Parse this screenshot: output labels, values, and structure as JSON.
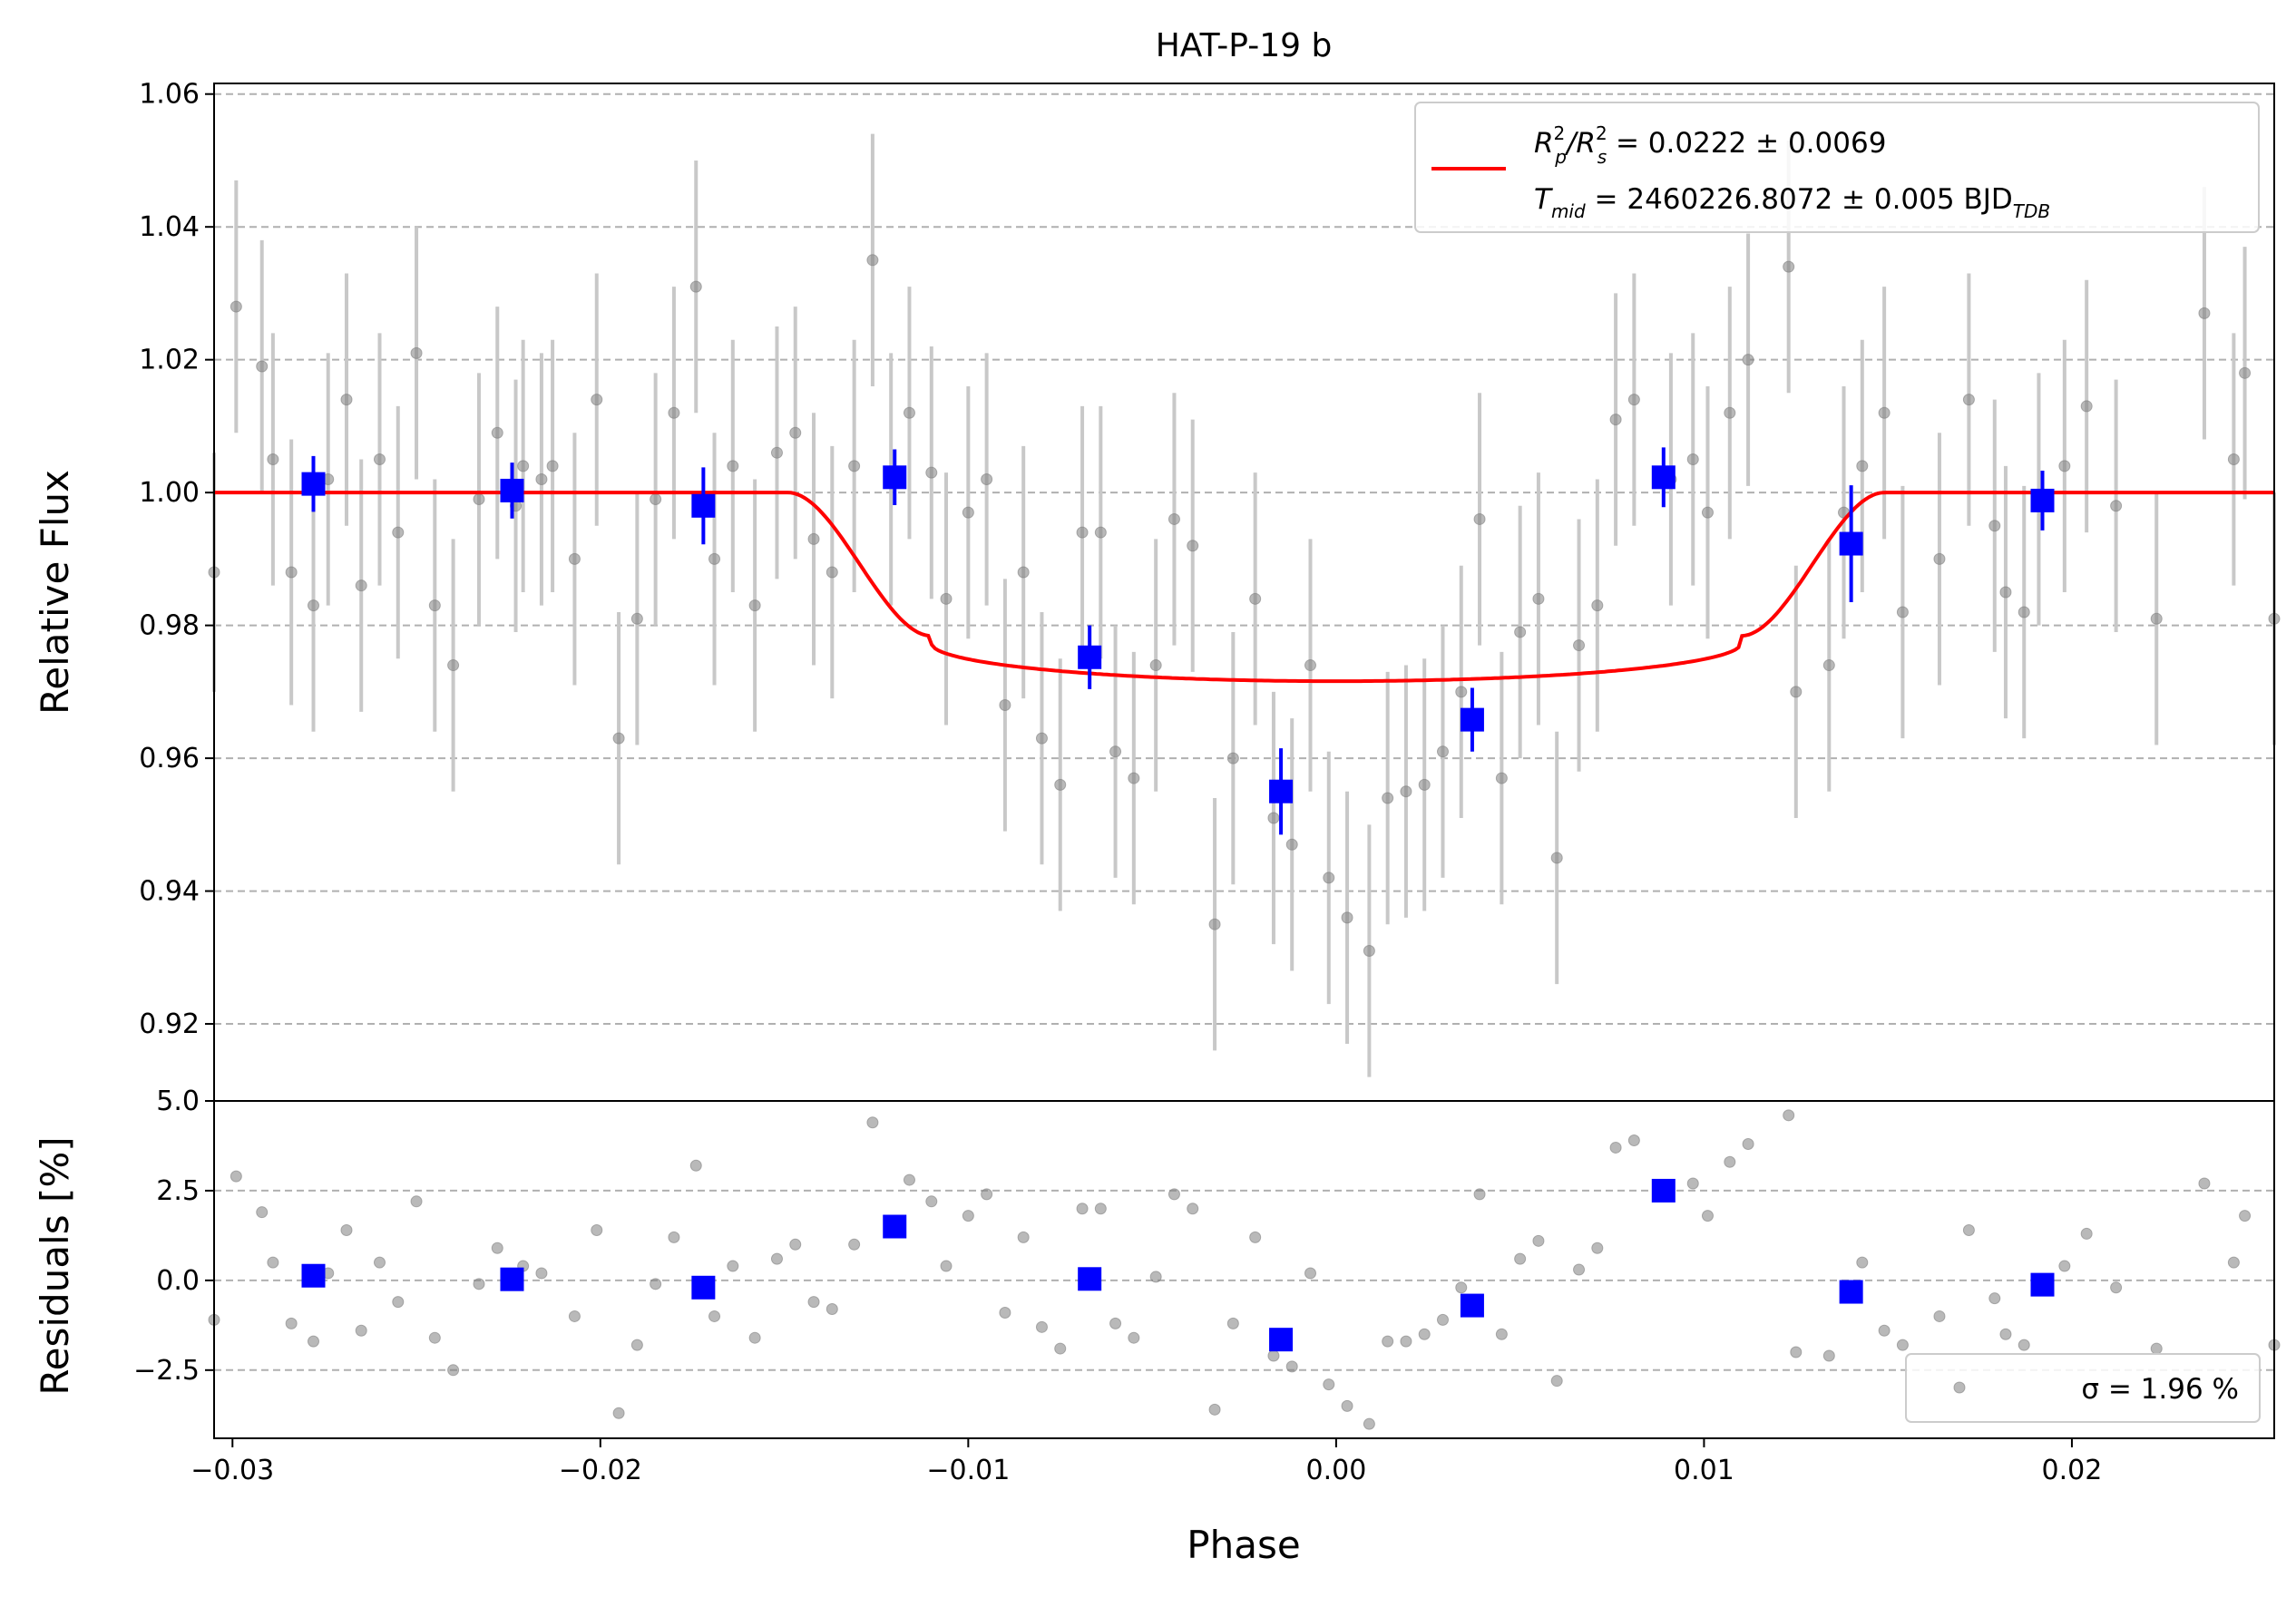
{
  "chart_data": [
    {
      "type": "scatter",
      "title": "HAT-P-19 b",
      "xlabel": "Phase",
      "ylabel": "Relative Flux",
      "xlim": [
        -0.0305,
        0.0255
      ],
      "ylim": [
        0.9084,
        1.0616
      ],
      "xticks": [
        "−0.03",
        "−0.02",
        "−0.01",
        "0.00",
        "0.01",
        "0.02"
      ],
      "xtick_values": [
        -0.03,
        -0.02,
        -0.01,
        0.0,
        0.01,
        0.02
      ],
      "yticks": [
        "0.92",
        "0.94",
        "0.96",
        "0.98",
        "1.00",
        "1.02",
        "1.04",
        "1.06"
      ],
      "ytick_values": [
        0.92,
        0.94,
        0.96,
        0.98,
        1.0,
        1.02,
        1.04,
        1.06
      ],
      "grid": "horizontal dashed",
      "legend_position": "top-right",
      "legend": [
        {
          "main": "R",
          "sup1": "2",
          "sub1": "p",
          "slash": "/R",
          "sup2": "2",
          "sub2": "s",
          "rest": " = 0.0222 ± 0.0069"
        },
        {
          "main": "T",
          "sub1": "mid",
          "rest": " = 2460226.8072 ± 0.005 BJD",
          "sub2": "TDB"
        }
      ],
      "colors": {
        "model": "#ff0000",
        "binned": "#0000ff",
        "raw": "#808080",
        "errorbar": "#c8c8c8",
        "grid": "#b0b0b0"
      },
      "raw_points": [
        [
          -0.0305,
          0.988,
          0.018
        ],
        [
          -0.0299,
          1.028,
          0.019
        ],
        [
          -0.0292,
          1.019,
          0.019
        ],
        [
          -0.0289,
          1.005,
          0.019
        ],
        [
          -0.0284,
          0.988,
          0.02
        ],
        [
          -0.0278,
          0.983,
          0.019
        ],
        [
          -0.0274,
          1.002,
          0.019
        ],
        [
          -0.0269,
          1.014,
          0.019
        ],
        [
          -0.0265,
          0.986,
          0.019
        ],
        [
          -0.026,
          1.005,
          0.019
        ],
        [
          -0.0255,
          0.994,
          0.019
        ],
        [
          -0.025,
          1.021,
          0.019
        ],
        [
          -0.0245,
          0.983,
          0.019
        ],
        [
          -0.024,
          0.974,
          0.019
        ],
        [
          -0.0233,
          0.999,
          0.019
        ],
        [
          -0.0228,
          1.009,
          0.019
        ],
        [
          -0.0223,
          0.998,
          0.019
        ],
        [
          -0.0221,
          1.004,
          0.019
        ],
        [
          -0.0216,
          1.002,
          0.019
        ],
        [
          -0.0213,
          1.004,
          0.019
        ],
        [
          -0.0207,
          0.99,
          0.019
        ],
        [
          -0.0201,
          1.014,
          0.019
        ],
        [
          -0.0195,
          0.963,
          0.019
        ],
        [
          -0.019,
          0.981,
          0.019
        ],
        [
          -0.0185,
          0.999,
          0.019
        ],
        [
          -0.018,
          1.012,
          0.019
        ],
        [
          -0.0174,
          1.031,
          0.019
        ],
        [
          -0.0169,
          0.99,
          0.019
        ],
        [
          -0.0164,
          1.004,
          0.019
        ],
        [
          -0.0158,
          0.983,
          0.019
        ],
        [
          -0.0152,
          1.006,
          0.019
        ],
        [
          -0.0147,
          1.009,
          0.019
        ],
        [
          -0.0142,
          0.993,
          0.019
        ],
        [
          -0.0137,
          0.988,
          0.019
        ],
        [
          -0.0131,
          1.004,
          0.019
        ],
        [
          -0.0126,
          1.035,
          0.019
        ],
        [
          -0.0121,
          1.002,
          0.019
        ],
        [
          -0.0116,
          1.012,
          0.019
        ],
        [
          -0.011,
          1.003,
          0.019
        ],
        [
          -0.0106,
          0.984,
          0.019
        ],
        [
          -0.01,
          0.997,
          0.019
        ],
        [
          -0.0095,
          1.002,
          0.019
        ],
        [
          -0.009,
          0.968,
          0.019
        ],
        [
          -0.0085,
          0.988,
          0.019
        ],
        [
          -0.008,
          0.963,
          0.019
        ],
        [
          -0.0075,
          0.956,
          0.019
        ],
        [
          -0.0069,
          0.994,
          0.019
        ],
        [
          -0.0064,
          0.994,
          0.019
        ],
        [
          -0.006,
          0.961,
          0.019
        ],
        [
          -0.0055,
          0.957,
          0.019
        ],
        [
          -0.0049,
          0.974,
          0.019
        ],
        [
          -0.0044,
          0.996,
          0.019
        ],
        [
          -0.0039,
          0.992,
          0.019
        ],
        [
          -0.0033,
          0.935,
          0.019
        ],
        [
          -0.0028,
          0.96,
          0.019
        ],
        [
          -0.0022,
          0.984,
          0.019
        ],
        [
          -0.0017,
          0.951,
          0.019
        ],
        [
          -0.0012,
          0.947,
          0.019
        ],
        [
          -0.0007,
          0.974,
          0.019
        ],
        [
          -0.0002,
          0.942,
          0.019
        ],
        [
          0.0003,
          0.936,
          0.019
        ],
        [
          0.0009,
          0.931,
          0.019
        ],
        [
          0.0014,
          0.954,
          0.019
        ],
        [
          0.0019,
          0.955,
          0.019
        ],
        [
          0.0024,
          0.956,
          0.019
        ],
        [
          0.0029,
          0.961,
          0.019
        ],
        [
          0.0034,
          0.97,
          0.019
        ],
        [
          0.0039,
          0.996,
          0.019
        ],
        [
          0.0045,
          0.957,
          0.019
        ],
        [
          0.005,
          0.979,
          0.019
        ],
        [
          0.0055,
          0.984,
          0.019
        ],
        [
          0.006,
          0.945,
          0.019
        ],
        [
          0.0066,
          0.977,
          0.019
        ],
        [
          0.0071,
          0.983,
          0.019
        ],
        [
          0.0076,
          1.011,
          0.019
        ],
        [
          0.0081,
          1.014,
          0.019
        ],
        [
          0.0091,
          1.002,
          0.019
        ],
        [
          0.0097,
          1.005,
          0.019
        ],
        [
          0.0101,
          0.997,
          0.019
        ],
        [
          0.0107,
          1.012,
          0.019
        ],
        [
          0.0112,
          1.02,
          0.019
        ],
        [
          0.0123,
          1.034,
          0.019
        ],
        [
          0.0125,
          0.97,
          0.019
        ],
        [
          0.0134,
          0.974,
          0.019
        ],
        [
          0.0138,
          0.997,
          0.019
        ],
        [
          0.0143,
          1.004,
          0.019
        ],
        [
          0.0149,
          1.012,
          0.019
        ],
        [
          0.0154,
          0.982,
          0.019
        ],
        [
          0.0164,
          0.99,
          0.019
        ],
        [
          0.0172,
          1.014,
          0.019
        ],
        [
          0.0179,
          0.995,
          0.019
        ],
        [
          0.0182,
          0.985,
          0.019
        ],
        [
          0.0187,
          0.982,
          0.019
        ],
        [
          0.0191,
          0.999,
          0.019
        ],
        [
          0.0198,
          1.004,
          0.019
        ],
        [
          0.0204,
          1.013,
          0.019
        ],
        [
          0.0212,
          0.998,
          0.019
        ],
        [
          0.0223,
          0.981,
          0.019
        ],
        [
          0.0236,
          1.027,
          0.019
        ],
        [
          0.0244,
          1.005,
          0.019
        ],
        [
          0.0247,
          1.018,
          0.019
        ],
        [
          0.0255,
          0.981,
          0.019
        ]
      ],
      "binned_points": [
        [
          -0.0278,
          1.0013,
          0.0042
        ],
        [
          -0.0224,
          1.0003,
          0.0042
        ],
        [
          -0.0172,
          0.998,
          0.0058
        ],
        [
          -0.012,
          1.0023,
          0.0042
        ],
        [
          -0.0067,
          0.9752,
          0.0048
        ],
        [
          -0.0015,
          0.955,
          0.0065
        ],
        [
          0.0037,
          0.9658,
          0.0048
        ],
        [
          0.0089,
          1.0023,
          0.0045
        ],
        [
          0.014,
          0.9923,
          0.0088
        ],
        [
          0.0192,
          0.9988,
          0.0045
        ]
      ],
      "model": {
        "depth": 0.0284,
        "ingress_start": -0.0149,
        "full_start": -0.011,
        "full_end": 0.011,
        "egress_end": 0.0149
      }
    },
    {
      "type": "scatter",
      "ylabel": "Residuals [%]",
      "ylim": [
        -4.4,
        5.0
      ],
      "yticks": [
        "−2.5",
        "0.0",
        "2.5",
        "5.0"
      ],
      "ytick_values": [
        -2.5,
        0.0,
        2.5,
        5.0
      ],
      "grid": "horizontal dashed",
      "legend_position": "bottom-right",
      "legend_text": "σ = 1.96 %",
      "raw_residuals": [
        [
          -0.0305,
          -1.1
        ],
        [
          -0.0299,
          2.9
        ],
        [
          -0.0292,
          1.9
        ],
        [
          -0.0289,
          0.5
        ],
        [
          -0.0284,
          -1.2
        ],
        [
          -0.0278,
          -1.7
        ],
        [
          -0.0274,
          0.2
        ],
        [
          -0.0269,
          1.4
        ],
        [
          -0.0265,
          -1.4
        ],
        [
          -0.026,
          0.5
        ],
        [
          -0.0255,
          -0.6
        ],
        [
          -0.025,
          2.2
        ],
        [
          -0.0245,
          -1.6
        ],
        [
          -0.024,
          -2.5
        ],
        [
          -0.0233,
          -0.1
        ],
        [
          -0.0228,
          0.9
        ],
        [
          -0.0221,
          0.4
        ],
        [
          -0.0216,
          0.2
        ],
        [
          -0.0207,
          -1.0
        ],
        [
          -0.0201,
          1.4
        ],
        [
          -0.0195,
          -3.7
        ],
        [
          -0.019,
          -1.8
        ],
        [
          -0.0185,
          -0.1
        ],
        [
          -0.018,
          1.2
        ],
        [
          -0.0174,
          3.2
        ],
        [
          -0.0169,
          -1.0
        ],
        [
          -0.0164,
          0.4
        ],
        [
          -0.0158,
          -1.6
        ],
        [
          -0.0152,
          0.6
        ],
        [
          -0.0147,
          1.0
        ],
        [
          -0.0142,
          -0.6
        ],
        [
          -0.0137,
          -0.8
        ],
        [
          -0.0131,
          1.0
        ],
        [
          -0.0126,
          4.4
        ],
        [
          -0.0116,
          2.8
        ],
        [
          -0.011,
          2.2
        ],
        [
          -0.0106,
          0.4
        ],
        [
          -0.01,
          1.8
        ],
        [
          -0.0095,
          2.4
        ],
        [
          -0.009,
          -0.9
        ],
        [
          -0.0085,
          1.2
        ],
        [
          -0.008,
          -1.3
        ],
        [
          -0.0075,
          -1.9
        ],
        [
          -0.0069,
          2.0
        ],
        [
          -0.0064,
          2.0
        ],
        [
          -0.006,
          -1.2
        ],
        [
          -0.0055,
          -1.6
        ],
        [
          -0.0049,
          0.1
        ],
        [
          -0.0044,
          2.4
        ],
        [
          -0.0039,
          2.0
        ],
        [
          -0.0033,
          -3.6
        ],
        [
          -0.0028,
          -1.2
        ],
        [
          -0.0022,
          1.2
        ],
        [
          -0.0017,
          -2.1
        ],
        [
          -0.0012,
          -2.4
        ],
        [
          -0.0007,
          0.2
        ],
        [
          -0.0002,
          -2.9
        ],
        [
          0.0003,
          -3.5
        ],
        [
          0.0009,
          -4.0
        ],
        [
          0.0014,
          -1.7
        ],
        [
          0.0019,
          -1.7
        ],
        [
          0.0024,
          -1.5
        ],
        [
          0.0029,
          -1.1
        ],
        [
          0.0034,
          -0.2
        ],
        [
          0.0039,
          2.4
        ],
        [
          0.0045,
          -1.5
        ],
        [
          0.005,
          0.6
        ],
        [
          0.0055,
          1.1
        ],
        [
          0.006,
          -2.8
        ],
        [
          0.0066,
          0.3
        ],
        [
          0.0071,
          0.9
        ],
        [
          0.0076,
          3.7
        ],
        [
          0.0081,
          3.9
        ],
        [
          0.0097,
          2.7
        ],
        [
          0.0101,
          1.8
        ],
        [
          0.0107,
          3.3
        ],
        [
          0.0112,
          3.8
        ],
        [
          0.0123,
          4.6
        ],
        [
          0.0125,
          -2.0
        ],
        [
          0.0134,
          -2.1
        ],
        [
          0.0143,
          0.5
        ],
        [
          0.0149,
          -1.4
        ],
        [
          0.0154,
          -1.8
        ],
        [
          0.0164,
          -1.0
        ],
        [
          0.0172,
          1.4
        ],
        [
          0.0179,
          -0.5
        ],
        [
          0.0182,
          -1.5
        ],
        [
          0.0187,
          -1.8
        ],
        [
          0.0198,
          0.4
        ],
        [
          0.0204,
          1.3
        ],
        [
          0.0212,
          -0.2
        ],
        [
          0.0223,
          -1.9
        ],
        [
          0.0236,
          2.7
        ],
        [
          0.0244,
          0.5
        ],
        [
          0.0247,
          1.8
        ],
        [
          0.0255,
          -1.8
        ]
      ],
      "binned_residuals": [
        [
          -0.0278,
          0.13
        ],
        [
          -0.0224,
          0.03
        ],
        [
          -0.0172,
          -0.2
        ],
        [
          -0.012,
          1.5
        ],
        [
          -0.0067,
          0.04
        ],
        [
          -0.0015,
          -1.65
        ],
        [
          0.0037,
          -0.7
        ],
        [
          0.0089,
          2.5
        ],
        [
          0.014,
          -0.32
        ],
        [
          0.0192,
          -0.12
        ]
      ]
    }
  ]
}
